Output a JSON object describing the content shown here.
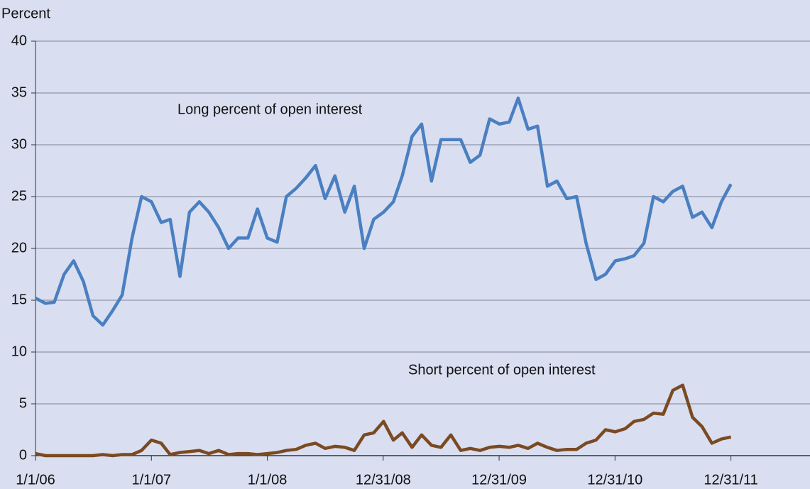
{
  "chart_data": {
    "type": "line",
    "y_label": "Percent",
    "annotations": [
      "Long percent of open interest",
      "Short percent of open interest"
    ],
    "x": [
      "2006-01-01",
      "2006-02-01",
      "2006-03-01",
      "2006-04-01",
      "2006-05-01",
      "2006-06-01",
      "2006-07-01",
      "2006-08-01",
      "2006-09-01",
      "2006-10-01",
      "2006-11-01",
      "2006-12-01",
      "2007-01-01",
      "2007-02-01",
      "2007-03-01",
      "2007-04-01",
      "2007-05-01",
      "2007-06-01",
      "2007-07-01",
      "2007-08-01",
      "2007-09-01",
      "2007-10-01",
      "2007-11-01",
      "2007-12-01",
      "2008-01-01",
      "2008-02-01",
      "2008-03-01",
      "2008-04-01",
      "2008-05-01",
      "2008-06-01",
      "2008-07-01",
      "2008-08-01",
      "2008-09-01",
      "2008-10-01",
      "2008-11-01",
      "2008-12-01",
      "2009-01-01",
      "2009-02-01",
      "2009-03-01",
      "2009-04-01",
      "2009-05-01",
      "2009-06-01",
      "2009-07-01",
      "2009-08-01",
      "2009-09-01",
      "2009-10-01",
      "2009-11-01",
      "2009-12-01",
      "2010-01-01",
      "2010-02-01",
      "2010-03-01",
      "2010-04-01",
      "2010-05-01",
      "2010-06-01",
      "2010-07-01",
      "2010-08-01",
      "2010-09-01",
      "2010-10-01",
      "2010-11-01",
      "2010-12-01",
      "2011-01-01",
      "2011-02-01",
      "2011-03-01",
      "2011-04-01",
      "2011-05-01",
      "2011-06-01",
      "2011-07-01",
      "2011-08-01",
      "2011-09-01",
      "2011-10-01",
      "2011-11-01",
      "2011-12-01",
      "2011-12-31"
    ],
    "series": [
      {
        "name": "Long percent of open interest",
        "color": "#4a7fc1",
        "values": [
          15.2,
          14.7,
          14.8,
          17.5,
          18.8,
          16.8,
          13.5,
          12.6,
          14.0,
          15.5,
          21.0,
          25.0,
          24.5,
          22.5,
          22.8,
          17.3,
          23.5,
          24.5,
          23.5,
          22.0,
          20.0,
          21.0,
          21.0,
          23.8,
          21.0,
          20.6,
          25.0,
          25.8,
          26.8,
          28.0,
          24.8,
          27.0,
          23.5,
          26.0,
          20.0,
          22.8,
          23.5,
          24.5,
          27.0,
          30.8,
          32.0,
          26.5,
          30.5,
          30.5,
          30.5,
          28.3,
          29.0,
          32.5,
          32.0,
          32.2,
          34.5,
          31.5,
          31.8,
          26.0,
          26.5,
          24.8,
          25.0,
          20.5,
          17.0,
          17.5,
          18.8,
          19.0,
          19.3,
          20.5,
          25.0,
          24.5,
          25.5,
          26.0,
          23.0,
          23.5,
          22.0,
          24.5,
          26.2
        ]
      },
      {
        "name": "Short percent of open interest",
        "color": "#7b4a22",
        "values": [
          0.2,
          0.0,
          0.0,
          0.0,
          0.0,
          0.0,
          0.0,
          0.1,
          0.0,
          0.1,
          0.1,
          0.5,
          1.5,
          1.2,
          0.1,
          0.3,
          0.4,
          0.5,
          0.2,
          0.5,
          0.1,
          0.2,
          0.2,
          0.1,
          0.2,
          0.3,
          0.5,
          0.6,
          1.0,
          1.2,
          0.7,
          0.9,
          0.8,
          0.5,
          2.0,
          2.2,
          3.3,
          1.5,
          2.2,
          0.8,
          2.0,
          1.0,
          0.8,
          2.0,
          0.5,
          0.7,
          0.5,
          0.8,
          0.9,
          0.8,
          1.0,
          0.7,
          1.2,
          0.8,
          0.5,
          0.6,
          0.6,
          1.2,
          1.5,
          2.5,
          2.3,
          2.6,
          3.3,
          3.5,
          4.1,
          4.0,
          6.3,
          6.8,
          3.7,
          2.8,
          1.2,
          1.6,
          1.8
        ]
      }
    ],
    "xlim": [
      "2006-01-01",
      "2012-09-05"
    ],
    "xticks": [
      {
        "value": "2006-01-01",
        "label": "1/1/06"
      },
      {
        "value": "2007-01-01",
        "label": "1/1/07"
      },
      {
        "value": "2008-01-01",
        "label": "1/1/08"
      },
      {
        "value": "2008-12-31",
        "label": "12/31/08"
      },
      {
        "value": "2009-12-31",
        "label": "12/31/09"
      },
      {
        "value": "2010-12-31",
        "label": "12/31/10"
      },
      {
        "value": "2011-12-31",
        "label": "12/31/11"
      }
    ],
    "ylim": [
      0,
      40
    ],
    "yticks": [
      0,
      5,
      10,
      15,
      20,
      25,
      30,
      35,
      40
    ],
    "grid": true
  }
}
